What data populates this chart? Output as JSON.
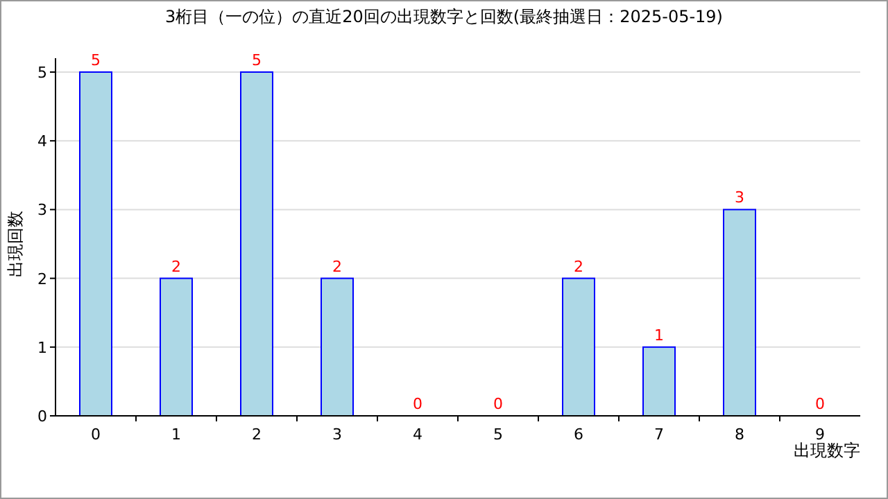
{
  "chart_data": {
    "type": "bar",
    "title": "3桁目（一の位）の直近20回の出現数字と回数(最終抽選日：2025-05-19)",
    "xlabel": "出現数字",
    "ylabel": "出現回数",
    "categories": [
      "0",
      "1",
      "2",
      "3",
      "4",
      "5",
      "6",
      "7",
      "8",
      "9"
    ],
    "values": [
      5,
      2,
      5,
      2,
      0,
      0,
      2,
      1,
      3,
      0
    ],
    "color": "#add8e6",
    "ylim": [
      0,
      5
    ],
    "yticks": [
      0,
      1,
      2,
      3,
      4,
      5
    ],
    "grid": "y",
    "data_labels": true
  }
}
